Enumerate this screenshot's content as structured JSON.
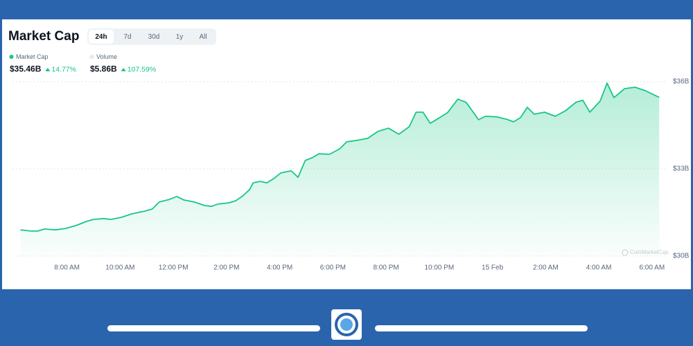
{
  "chart_data": {
    "type": "area",
    "title": "Market Cap",
    "series": [
      {
        "name": "Market Cap",
        "color": "#16c784",
        "x": [
          6.25,
          6.64,
          6.9,
          7.16,
          7.56,
          7.95,
          8.34,
          8.73,
          8.99,
          9.38,
          9.64,
          10.04,
          10.43,
          10.95,
          11.21,
          11.47,
          11.86,
          12.13,
          12.39,
          12.78,
          13.17,
          13.43,
          13.69,
          14.08,
          14.34,
          14.61,
          14.87,
          15.0,
          15.26,
          15.52,
          15.78,
          16.04,
          16.43,
          16.69,
          16.96,
          17.22,
          17.48,
          17.87,
          18.26,
          18.52,
          18.91,
          19.31,
          19.7,
          20.09,
          20.48,
          20.87,
          21.13,
          21.39,
          21.66,
          21.92,
          22.31,
          22.7,
          23.01,
          23.48,
          23.74,
          24.14,
          24.53,
          24.79,
          25.05,
          25.31,
          25.57,
          25.96,
          26.36,
          26.75,
          27.14,
          27.4,
          27.66,
          28.05,
          28.31,
          28.57,
          28.97,
          29.36,
          29.75,
          30.27
        ],
        "values": [
          30.9,
          30.86,
          30.86,
          30.93,
          30.9,
          30.95,
          31.05,
          31.19,
          31.26,
          31.29,
          31.26,
          31.33,
          31.45,
          31.55,
          31.62,
          31.86,
          31.95,
          32.05,
          31.93,
          31.86,
          31.74,
          31.71,
          31.79,
          31.83,
          31.9,
          32.07,
          32.29,
          32.52,
          32.57,
          32.52,
          32.67,
          32.86,
          32.93,
          32.71,
          33.29,
          33.38,
          33.52,
          33.5,
          33.69,
          33.93,
          33.98,
          34.05,
          34.29,
          34.4,
          34.19,
          34.45,
          34.95,
          34.95,
          34.57,
          34.71,
          34.93,
          35.4,
          35.29,
          34.69,
          34.81,
          34.79,
          34.71,
          34.62,
          34.76,
          35.12,
          34.88,
          34.95,
          34.81,
          35.0,
          35.29,
          35.36,
          34.95,
          35.33,
          35.95,
          35.45,
          35.76,
          35.81,
          35.69,
          35.46
        ]
      }
    ],
    "xlim": [
      5.95,
      30.5
    ],
    "xticks": [
      {
        "value": 8,
        "label": "8:00 AM"
      },
      {
        "value": 10,
        "label": "10:00 AM"
      },
      {
        "value": 12,
        "label": "12:00 PM"
      },
      {
        "value": 14,
        "label": "2:00 PM"
      },
      {
        "value": 16,
        "label": "4:00 PM"
      },
      {
        "value": 18,
        "label": "6:00 PM"
      },
      {
        "value": 20,
        "label": "8:00 PM"
      },
      {
        "value": 22,
        "label": "10:00 PM"
      },
      {
        "value": 24,
        "label": "15 Feb"
      },
      {
        "value": 26,
        "label": "2:00 AM"
      },
      {
        "value": 28,
        "label": "4:00 AM"
      },
      {
        "value": 30,
        "label": "6:00 AM"
      }
    ],
    "ylim": [
      30,
      36
    ],
    "yticks": [
      {
        "value": 30,
        "label": "$30B"
      },
      {
        "value": 33,
        "label": "$33B"
      },
      {
        "value": 36,
        "label": "$36B"
      }
    ],
    "grid": true,
    "watermark": "CoinMarketCap"
  },
  "tabs": [
    "24h",
    "7d",
    "30d",
    "1y",
    "All"
  ],
  "active_tab": 0,
  "summary": [
    {
      "name": "Market Cap",
      "color": "#16c784",
      "value": "$35.46B",
      "change": "14.77%"
    },
    {
      "name": "Volume",
      "color": "#e6e8ec",
      "value": "$5.86B",
      "change": "107.59%"
    }
  ]
}
